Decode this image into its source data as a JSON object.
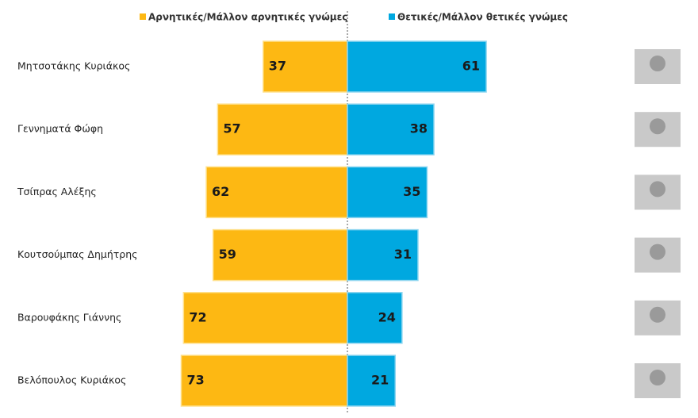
{
  "chart_data": {
    "type": "diverging-bar",
    "categories": [
      "Μητσοτάκης Κυριάκος",
      "Γεννηματά Φώφη",
      "Τσίπρας Αλέξης",
      "Κουτσούμπας Δημήτρης",
      "Βαρουφάκης Γιάννης",
      "Βελόπουλος Κυριάκος"
    ],
    "series": [
      {
        "name": "Αρνητικές/Μάλλον αρνητικές γνώμες",
        "color": "#fdb813",
        "values": [
          37,
          57,
          62,
          59,
          72,
          73
        ]
      },
      {
        "name": "Θετικές/Μάλλον θετικές γνώμες",
        "color": "#00a8e0",
        "values": [
          61,
          38,
          35,
          31,
          24,
          21
        ]
      }
    ]
  }
}
